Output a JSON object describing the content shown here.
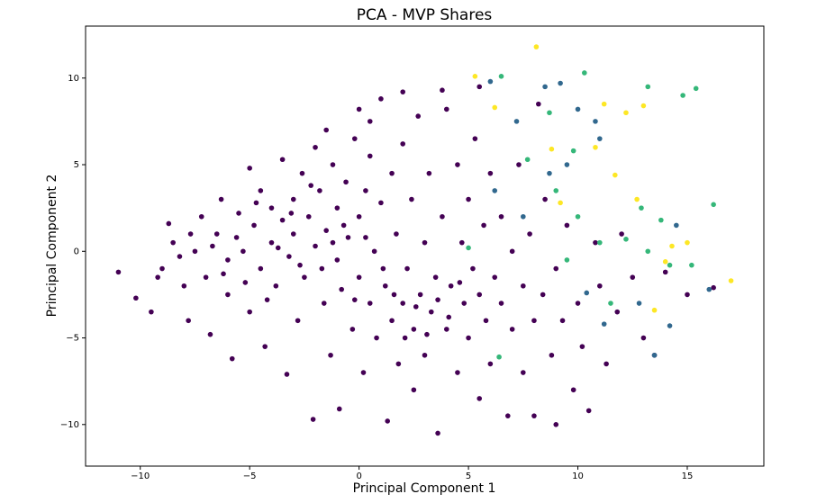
{
  "chart_data": {
    "type": "scatter",
    "title": "PCA - MVP Shares",
    "x_label": "Principal Component 1",
    "y_label": "Principal Component 2",
    "xlim": [
      -12.5,
      18.5
    ],
    "ylim": [
      -12.4,
      13.0
    ],
    "xticks": [
      {
        "value": -10,
        "label": "−10"
      },
      {
        "value": -5,
        "label": "−5"
      },
      0,
      5,
      10,
      15
    ],
    "yticks": [
      {
        "value": -10,
        "label": "−10"
      },
      {
        "value": -5,
        "label": "−5"
      },
      0,
      5,
      10
    ],
    "series": [
      {
        "color": "#440154",
        "x": [
          -11,
          -10.2,
          -9.5,
          -9,
          -8.5,
          -8.7,
          -8,
          -7.8,
          -7.5,
          -7.2,
          -7,
          -6.8,
          -6.5,
          -6.3,
          -6,
          -6,
          -5.8,
          -5.5,
          -5.3,
          -5,
          -5,
          -4.8,
          -4.5,
          -4.5,
          -4.3,
          -4,
          -4,
          -3.8,
          -3.5,
          -3.5,
          -3.3,
          -3.2,
          -3,
          -3,
          -2.8,
          -2.6,
          -2.5,
          -2.3,
          -2.1,
          -2,
          -2,
          -1.8,
          -1.6,
          -1.5,
          -1.3,
          -1.2,
          -1,
          -1,
          -0.9,
          -0.8,
          -0.6,
          -0.5,
          -0.3,
          -0.2,
          0,
          0,
          0.2,
          0.3,
          0.5,
          0.5,
          0.7,
          0.8,
          1,
          1,
          1.2,
          1.3,
          1.5,
          1.5,
          1.7,
          1.8,
          2,
          2,
          2.2,
          2.4,
          2.5,
          2.5,
          2.7,
          2.8,
          3,
          3,
          3.2,
          3.3,
          3.5,
          3.6,
          3.8,
          4,
          4,
          4.2,
          4.5,
          4.5,
          4.7,
          4.8,
          5,
          5,
          5.2,
          5.3,
          5.5,
          5.5,
          5.7,
          5.8,
          6,
          6,
          6.2,
          6.5,
          6.5,
          6.8,
          7,
          7,
          7.3,
          7.5,
          7.5,
          7.8,
          8,
          8,
          8.2,
          8.4,
          8.5,
          8.8,
          9,
          9,
          9.3,
          9.5,
          9.8,
          10,
          10.2,
          10.5,
          10.8,
          11,
          11.3,
          11.8,
          12,
          12.5,
          13,
          13.5,
          14,
          15,
          16.2,
          -9.2,
          -8.2,
          -7.7,
          -6.7,
          -6.2,
          -5.6,
          -5.2,
          -4.7,
          -4.2,
          -3.7,
          -3.1,
          -2.7,
          -2.2,
          -1.7,
          -1.2,
          -0.7,
          -0.2,
          0.3,
          1.1,
          1.6,
          2.1,
          2.6,
          3.1,
          3.6,
          4.1,
          4.6,
          0,
          2,
          3.8,
          5.5,
          -1.5,
          0.5
        ],
        "values": [
          -1.2,
          -2.7,
          -3.5,
          -1,
          0.5,
          1.6,
          -2,
          -4,
          0,
          2,
          -1.5,
          -4.8,
          1,
          3,
          -2.5,
          -0.5,
          -6.2,
          2.2,
          0,
          -3.5,
          4.8,
          1.5,
          -1,
          3.5,
          -5.5,
          0.5,
          2.5,
          -2,
          5.3,
          1.8,
          -7.1,
          -0.3,
          3,
          1,
          -4,
          4.5,
          -1.5,
          2,
          -9.7,
          0.3,
          6,
          3.5,
          -3,
          1.2,
          -6,
          5,
          -0.5,
          2.5,
          -9.1,
          -2.2,
          4,
          0.8,
          -4.5,
          6.5,
          2,
          -1.5,
          -7,
          3.5,
          -3,
          5.5,
          0,
          -5,
          8.8,
          2.8,
          -2,
          -9.8,
          4.5,
          -4,
          1,
          -6.5,
          -3,
          6.2,
          -1,
          3,
          -8,
          -4.5,
          7.8,
          -2.5,
          0.5,
          -6,
          4.5,
          -3.5,
          -1.5,
          -10.5,
          2,
          -4.5,
          8.2,
          -2,
          5,
          -7,
          0.5,
          -3,
          3,
          -5,
          -1,
          6.5,
          -8.5,
          -2.5,
          1.5,
          -4,
          4.5,
          -6.5,
          -1.5,
          -3,
          2,
          -9.5,
          0,
          -4.5,
          5,
          -2,
          -7,
          1,
          -4,
          -9.5,
          8.5,
          -2.5,
          3,
          -6,
          -1,
          -10,
          -4,
          1.5,
          -8,
          -3,
          -5.5,
          -9.2,
          0.5,
          -2,
          -6.5,
          -3.5,
          1,
          -1.5,
          -5,
          -6,
          -1.2,
          -2.5,
          -2.1,
          -1.5,
          -0.3,
          1,
          0.3,
          -1.3,
          0.8,
          -1.8,
          2.8,
          -2.8,
          0.2,
          2.2,
          -0.8,
          3.8,
          -1,
          0.5,
          1.5,
          -2.8,
          0.8,
          -1,
          -2.5,
          -5,
          -3.2,
          -4.8,
          -2.8,
          -3.8,
          -1.8,
          8.2,
          9.2,
          9.3,
          9.5,
          7,
          7.5
        ]
      },
      {
        "color": "#31688e",
        "x": [
          6,
          8.5,
          9.2,
          10.8,
          11,
          9.5,
          8.7,
          7.5,
          6.2,
          10.4,
          12.8,
          14.2,
          13.5,
          16,
          11.2,
          14.5,
          10,
          7.2
        ],
        "values": [
          9.8,
          9.5,
          9.7,
          7.5,
          6.5,
          5,
          4.5,
          2,
          3.5,
          -2.4,
          -3,
          -4.3,
          -6,
          -2.2,
          -4.2,
          1.5,
          8.2,
          7.5
        ]
      },
      {
        "color": "#35b779",
        "x": [
          6.5,
          10.3,
          13.2,
          15.4,
          14.8,
          8.7,
          9.8,
          9,
          10,
          11,
          12.2,
          13.8,
          16.2,
          14.2,
          12.9,
          6.4,
          5,
          11.5,
          13.2,
          15.2,
          9.5,
          7.7
        ],
        "values": [
          10.1,
          10.3,
          9.5,
          9.4,
          9,
          8,
          5.8,
          3.5,
          2,
          0.5,
          0.7,
          1.8,
          2.7,
          -0.8,
          2.5,
          -6.1,
          0.2,
          -3,
          0,
          -0.8,
          -0.5,
          5.3
        ]
      },
      {
        "color": "#fde725",
        "x": [
          8.1,
          5.3,
          11.2,
          12.2,
          13,
          11.7,
          10.8,
          12.7,
          9.2,
          15,
          14.3,
          14,
          17,
          13.5,
          8.8,
          6.2
        ],
        "values": [
          11.8,
          10.1,
          8.5,
          8,
          8.4,
          4.4,
          6,
          3,
          2.8,
          0.5,
          0.3,
          -0.6,
          -1.7,
          -3.4,
          5.9,
          8.3
        ]
      }
    ]
  }
}
